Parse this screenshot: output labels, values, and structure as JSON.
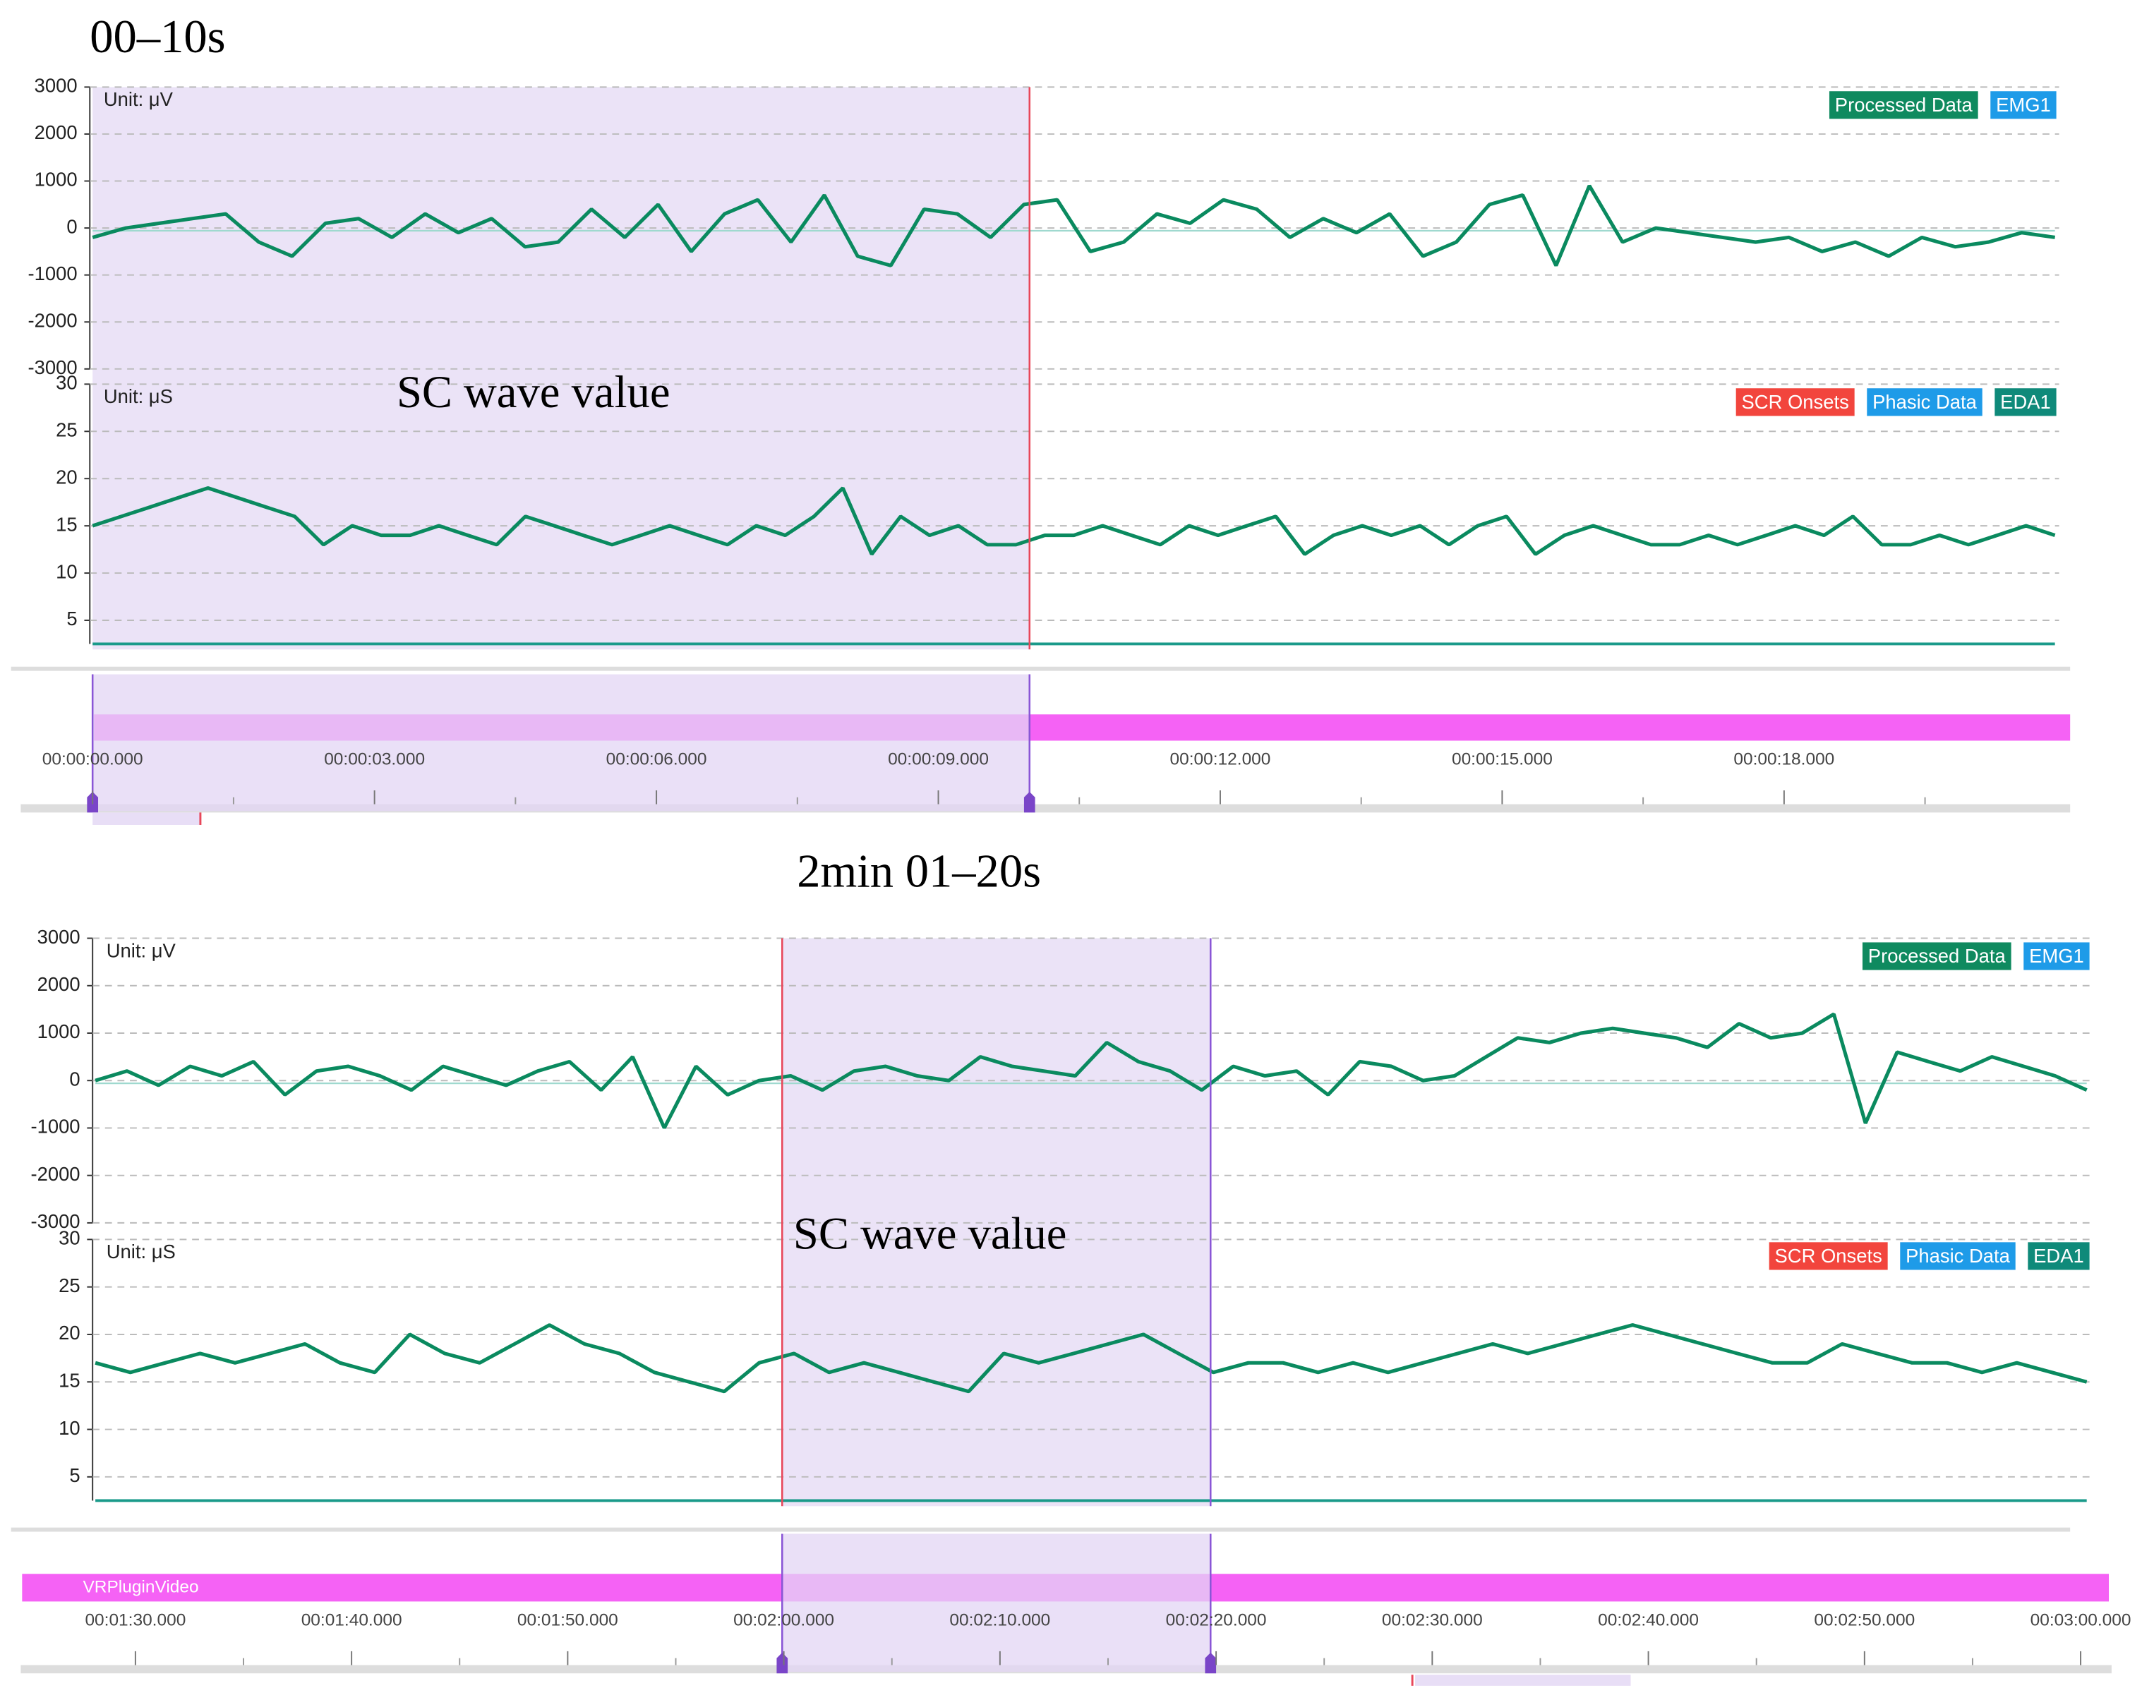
{
  "panels": [
    {
      "title": "00–10s",
      "annotation": "SC wave value",
      "emg": {
        "unit": "Unit: μV",
        "legend": [
          {
            "name": "Processed Data",
            "color": "#0f8a5f"
          },
          {
            "name": "EMG1",
            "color": "#1e9be8"
          }
        ],
        "ylim": [
          -3000,
          3000
        ],
        "yticks": [
          3000,
          2000,
          1000,
          0,
          -1000,
          -2000,
          -3000
        ],
        "color": "#0a8a5f",
        "values": [
          -200,
          0,
          100,
          200,
          300,
          -300,
          -600,
          100,
          200,
          -200,
          300,
          -100,
          200,
          -400,
          -300,
          400,
          -200,
          500,
          -500,
          300,
          600,
          -300,
          700,
          -600,
          -800,
          400,
          300,
          -200,
          500,
          600,
          -500,
          -300,
          300,
          100,
          600,
          400,
          -200,
          200,
          -100,
          300,
          -600,
          -300,
          500,
          700,
          -800,
          900,
          -300,
          0,
          -100,
          -200,
          -300,
          -200,
          -500,
          -300,
          -600,
          -200,
          -400,
          -300,
          -100,
          -200
        ]
      },
      "eda": {
        "unit": "Unit: μS",
        "legend": [
          {
            "name": "SCR Onsets",
            "color": "#f2453d"
          },
          {
            "name": "Phasic Data",
            "color": "#1e9be8"
          },
          {
            "name": "EDA1",
            "color": "#0f8a7a"
          }
        ],
        "ylim": [
          2.5,
          30
        ],
        "yticks": [
          30,
          25,
          20,
          15,
          10,
          5
        ],
        "color": "#0a8a5f",
        "values": [
          15,
          16,
          17,
          18,
          19,
          18,
          17,
          16,
          13,
          15,
          14,
          14,
          15,
          14,
          13,
          16,
          15,
          14,
          13,
          14,
          15,
          14,
          13,
          15,
          14,
          16,
          19,
          12,
          16,
          14,
          15,
          13,
          13,
          14,
          14,
          15,
          14,
          13,
          15,
          14,
          15,
          16,
          12,
          14,
          15,
          14,
          15,
          13,
          15,
          16,
          12,
          14,
          15,
          14,
          13,
          13,
          14,
          13,
          14,
          15,
          14,
          16,
          13,
          13,
          14,
          13,
          14,
          15,
          14
        ]
      },
      "timeline": {
        "ticks": [
          "00:00:00.000",
          "00:00:03.000",
          "00:00:06.000",
          "00:00:09.000",
          "00:00:12.000",
          "00:00:15.000",
          "00:00:18.000"
        ]
      }
    },
    {
      "title": "2min 01–20s",
      "annotation": "SC wave value",
      "emg": {
        "unit": "Unit: μV",
        "legend": [
          {
            "name": "Processed Data",
            "color": "#0f8a5f"
          },
          {
            "name": "EMG1",
            "color": "#1e9be8"
          }
        ],
        "ylim": [
          -3000,
          3000
        ],
        "yticks": [
          3000,
          2000,
          1000,
          0,
          -1000,
          -2000,
          -3000
        ],
        "color": "#0a8a5f",
        "values": [
          0,
          200,
          -100,
          300,
          100,
          400,
          -300,
          200,
          300,
          100,
          -200,
          300,
          100,
          -100,
          200,
          400,
          -200,
          500,
          -1000,
          300,
          -300,
          0,
          100,
          -200,
          200,
          300,
          100,
          0,
          500,
          300,
          200,
          100,
          800,
          400,
          200,
          -200,
          300,
          100,
          200,
          -300,
          400,
          300,
          0,
          100,
          500,
          900,
          800,
          1000,
          1100,
          1000,
          900,
          700,
          1200,
          900,
          1000,
          1400,
          -900,
          600,
          400,
          200,
          500,
          300,
          100,
          -200
        ]
      },
      "eda": {
        "unit": "Unit: μS",
        "legend": [
          {
            "name": "SCR Onsets",
            "color": "#f2453d"
          },
          {
            "name": "Phasic Data",
            "color": "#1e9be8"
          },
          {
            "name": "EDA1",
            "color": "#0f8a7a"
          }
        ],
        "ylim": [
          2.5,
          30
        ],
        "yticks": [
          30,
          25,
          20,
          15,
          10,
          5
        ],
        "color": "#0a8a5f",
        "values": [
          17,
          16,
          17,
          18,
          17,
          18,
          19,
          17,
          16,
          20,
          18,
          17,
          19,
          21,
          19,
          18,
          16,
          15,
          14,
          17,
          18,
          16,
          17,
          16,
          15,
          14,
          18,
          17,
          18,
          19,
          20,
          18,
          16,
          17,
          17,
          16,
          17,
          16,
          17,
          18,
          19,
          18,
          19,
          20,
          21,
          20,
          19,
          18,
          17,
          17,
          19,
          18,
          17,
          17,
          16,
          17,
          16,
          15
        ]
      },
      "timeline": {
        "track": "VRPluginVideo",
        "ticks": [
          "00:01:30.000",
          "00:01:40.000",
          "00:01:50.000",
          "00:02:00.000",
          "00:02:10.000",
          "00:02:20.000",
          "00:02:30.000",
          "00:02:40.000",
          "00:02:50.000",
          "00:03:00.000"
        ]
      }
    }
  ]
}
